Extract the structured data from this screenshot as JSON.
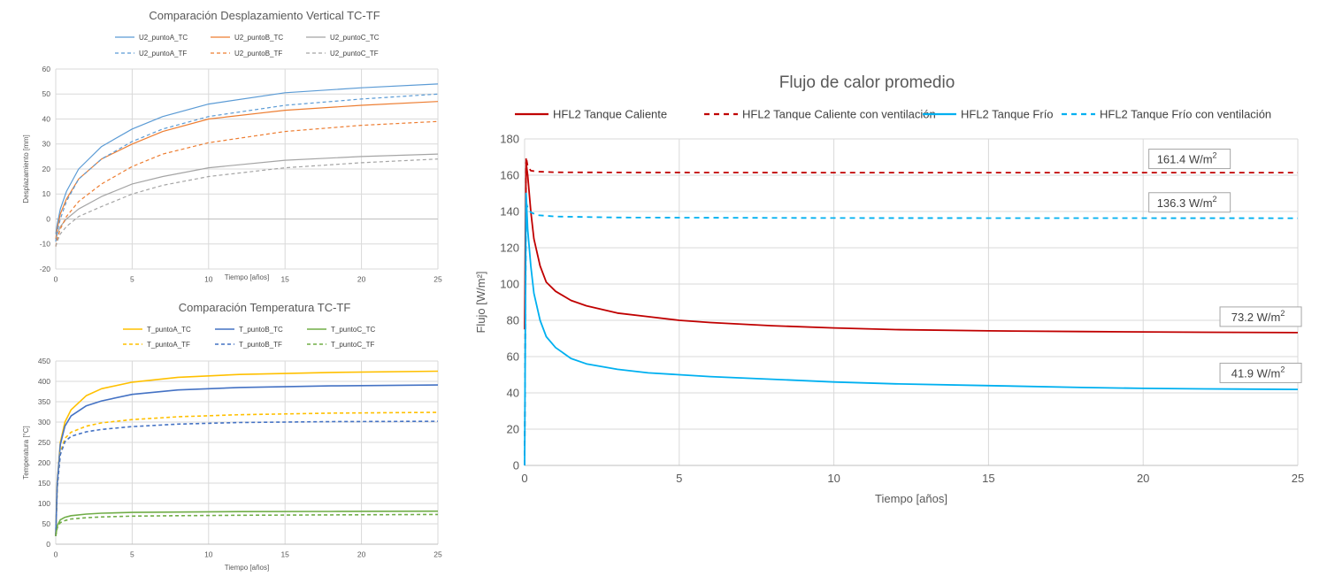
{
  "chart_data": [
    {
      "type": "line",
      "title": "Comparación Desplazamiento Vertical TC-TF",
      "xlabel": "Tiempo [años]",
      "ylabel": "Desplazamiento [mm]",
      "xlim": [
        0,
        25
      ],
      "ylim": [
        -20,
        60
      ],
      "xticks": [
        0,
        5,
        10,
        15,
        20,
        25
      ],
      "yticks": [
        -20,
        -10,
        0,
        10,
        20,
        30,
        40,
        50,
        60
      ],
      "grid": true,
      "legend_position": "top",
      "legend_columns": 3,
      "series": [
        {
          "name": "U2_puntoA_TC",
          "color": "#5b9bd5",
          "dash": false,
          "x": [
            0,
            0.1,
            0.3,
            0.7,
            1.5,
            3,
            5,
            7,
            10,
            15,
            20,
            25
          ],
          "y": [
            -6,
            -2,
            4,
            11,
            20,
            29,
            36,
            41,
            46,
            50.5,
            52.5,
            54
          ]
        },
        {
          "name": "U2_puntoB_TC",
          "color": "#ed7d31",
          "dash": false,
          "x": [
            0,
            0.1,
            0.3,
            0.7,
            1.5,
            3,
            5,
            7,
            10,
            15,
            20,
            25
          ],
          "y": [
            -8,
            -4,
            2,
            8,
            16,
            24,
            30,
            35,
            40,
            43.5,
            45.5,
            47
          ]
        },
        {
          "name": "U2_puntoC_TC",
          "color": "#a5a5a5",
          "dash": false,
          "x": [
            0,
            0.1,
            0.3,
            0.7,
            1.5,
            3,
            5,
            7,
            10,
            15,
            20,
            25
          ],
          "y": [
            -9,
            -6,
            -3,
            0,
            4,
            9,
            14,
            17,
            20.5,
            23.5,
            25,
            26
          ]
        },
        {
          "name": "U2_puntoA_TF",
          "color": "#5b9bd5",
          "dash": true,
          "x": [
            0,
            0.1,
            0.3,
            0.7,
            1.5,
            3,
            5,
            7,
            10,
            15,
            20,
            25
          ],
          "y": [
            -9,
            -5,
            0,
            7,
            16,
            24,
            31,
            36,
            41,
            45.5,
            48,
            50
          ]
        },
        {
          "name": "U2_puntoB_TF",
          "color": "#ed7d31",
          "dash": true,
          "x": [
            0,
            0.1,
            0.3,
            0.7,
            1.5,
            3,
            5,
            7,
            10,
            15,
            20,
            25
          ],
          "y": [
            -11,
            -8,
            -4,
            1,
            7,
            14,
            21,
            26,
            30.5,
            35,
            37.5,
            39
          ]
        },
        {
          "name": "U2_puntoC_TF",
          "color": "#a5a5a5",
          "dash": true,
          "x": [
            0,
            0.1,
            0.3,
            0.7,
            1.5,
            3,
            5,
            7,
            10,
            15,
            20,
            25
          ],
          "y": [
            -11,
            -9,
            -6,
            -3,
            1,
            5,
            10,
            13.5,
            17,
            20.5,
            22.5,
            24
          ]
        }
      ]
    },
    {
      "type": "line",
      "title": "Comparación Temperatura TC-TF",
      "xlabel": "Tiempo [años]",
      "ylabel": "Temperatura [°C]",
      "xlim": [
        0,
        25
      ],
      "ylim": [
        0,
        450
      ],
      "xticks": [
        0,
        5,
        10,
        15,
        20,
        25
      ],
      "yticks": [
        0,
        50,
        100,
        150,
        200,
        250,
        300,
        350,
        400,
        450
      ],
      "grid": true,
      "legend_position": "top",
      "legend_columns": 3,
      "series": [
        {
          "name": "T_puntoA_TC",
          "color": "#ffc000",
          "dash": false,
          "x": [
            0,
            0.1,
            0.3,
            0.6,
            1,
            2,
            3,
            5,
            8,
            12,
            18,
            25
          ],
          "y": [
            20,
            150,
            250,
            300,
            330,
            365,
            382,
            398,
            410,
            417,
            422,
            425
          ]
        },
        {
          "name": "T_puntoB_TC",
          "color": "#4472c4",
          "dash": false,
          "x": [
            0,
            0.1,
            0.3,
            0.6,
            1,
            2,
            3,
            5,
            8,
            12,
            18,
            25
          ],
          "y": [
            20,
            150,
            245,
            290,
            315,
            340,
            352,
            368,
            379,
            385,
            389,
            391
          ]
        },
        {
          "name": "T_puntoC_TC",
          "color": "#70ad47",
          "dash": false,
          "x": [
            0,
            0.1,
            0.3,
            0.6,
            1,
            2,
            3,
            5,
            8,
            12,
            18,
            25
          ],
          "y": [
            20,
            45,
            60,
            66,
            70,
            74,
            76,
            78,
            79,
            80,
            80.5,
            81
          ]
        },
        {
          "name": "T_puntoA_TF",
          "color": "#ffc000",
          "dash": true,
          "x": [
            0,
            0.1,
            0.3,
            0.6,
            1,
            2,
            3,
            5,
            8,
            12,
            18,
            25
          ],
          "y": [
            20,
            140,
            225,
            260,
            275,
            290,
            298,
            306,
            313,
            318,
            322,
            324
          ]
        },
        {
          "name": "T_puntoB_TF",
          "color": "#4472c4",
          "dash": true,
          "x": [
            0,
            0.1,
            0.3,
            0.6,
            1,
            2,
            3,
            5,
            8,
            12,
            18,
            25
          ],
          "y": [
            20,
            140,
            220,
            252,
            265,
            276,
            282,
            289,
            295,
            299,
            301,
            302
          ]
        },
        {
          "name": "T_puntoC_TF",
          "color": "#70ad47",
          "dash": true,
          "x": [
            0,
            0.1,
            0.3,
            0.6,
            1,
            2,
            3,
            5,
            8,
            12,
            18,
            25
          ],
          "y": [
            20,
            40,
            53,
            58,
            62,
            65,
            67,
            69,
            70,
            71,
            72,
            73
          ]
        }
      ]
    },
    {
      "type": "line",
      "title": "Flujo de calor promedio",
      "xlabel": "Tiempo [años]",
      "ylabel": "Flujo [W/m²]",
      "xlim": [
        0,
        25
      ],
      "ylim": [
        0,
        180
      ],
      "xticks": [
        0,
        5,
        10,
        15,
        20,
        25
      ],
      "yticks": [
        0,
        20,
        40,
        60,
        80,
        100,
        120,
        140,
        160,
        180
      ],
      "grid": true,
      "legend_position": "top",
      "legend_columns": 4,
      "series": [
        {
          "name": "HFL2 Tanque Caliente",
          "color": "#c00000",
          "dash": false,
          "x": [
            0,
            0.05,
            0.1,
            0.2,
            0.3,
            0.5,
            0.7,
            1,
            1.5,
            2,
            3,
            4,
            5,
            6,
            8,
            10,
            12,
            15,
            18,
            20,
            22,
            25
          ],
          "y": [
            75,
            167,
            160,
            140,
            125,
            110,
            101,
            96,
            91,
            88,
            84,
            82,
            80,
            78.8,
            77,
            75.8,
            74.9,
            74.2,
            73.8,
            73.6,
            73.4,
            73.2
          ]
        },
        {
          "name": "HFL2 Tanque Caliente con ventilación",
          "color": "#c00000",
          "dash": true,
          "x": [
            0,
            0.05,
            0.1,
            0.2,
            0.4,
            1,
            3,
            10,
            25
          ],
          "y": [
            0,
            170,
            165,
            162.5,
            162,
            161.6,
            161.5,
            161.4,
            161.4
          ]
        },
        {
          "name": "HFL2 Tanque Frío",
          "color": "#00b0f0",
          "dash": false,
          "x": [
            0,
            0.05,
            0.1,
            0.2,
            0.3,
            0.5,
            0.7,
            1,
            1.5,
            2,
            3,
            4,
            5,
            6,
            8,
            10,
            12,
            15,
            18,
            20,
            22,
            25
          ],
          "y": [
            0,
            150,
            130,
            110,
            95,
            80,
            71,
            65,
            59,
            56,
            53,
            51,
            50,
            49,
            47.5,
            46,
            45,
            44,
            43,
            42.5,
            42.2,
            41.9
          ]
        },
        {
          "name": "HFL2 Tanque Frío con ventilación",
          "color": "#00b0f0",
          "dash": true,
          "x": [
            0,
            0.05,
            0.1,
            0.2,
            0.4,
            1,
            3,
            10,
            25
          ],
          "y": [
            0,
            145,
            142,
            139.5,
            138,
            137.2,
            136.7,
            136.4,
            136.3
          ]
        }
      ],
      "annotations": [
        {
          "text": "161.4 W/m",
          "sup": "2",
          "x": 21.5,
          "y": 169
        },
        {
          "text": "136.3 W/m",
          "sup": "2",
          "x": 21.5,
          "y": 145
        },
        {
          "text": "73.2 W/m",
          "sup": "2",
          "x": 23.8,
          "y": 82
        },
        {
          "text": "41.9 W/m",
          "sup": "2",
          "x": 23.8,
          "y": 51
        }
      ]
    }
  ]
}
